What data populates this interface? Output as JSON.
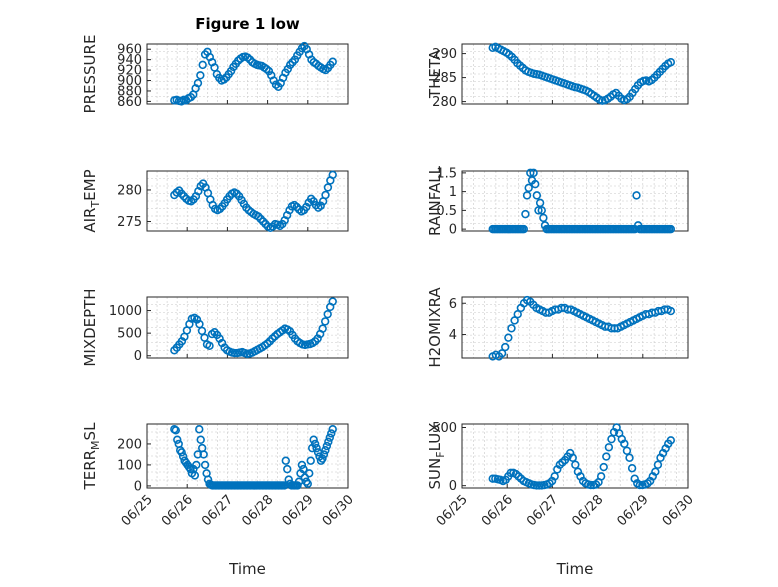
{
  "chart_data": [
    {
      "type": "scatter",
      "title": "Figure 1 low",
      "xlabel": "",
      "ylabel": "PRESSURE",
      "ylim": [
        855,
        970
      ],
      "yticks": [
        860,
        880,
        900,
        920,
        940,
        960
      ],
      "y": [
        862,
        863,
        861,
        860,
        863,
        862,
        866,
        868,
        873,
        885,
        895,
        910,
        930,
        950,
        955,
        945,
        935,
        925,
        912,
        905,
        900,
        902,
        906,
        912,
        918,
        926,
        932,
        938,
        942,
        945,
        946,
        944,
        940,
        935,
        932,
        930,
        929,
        928,
        925,
        922,
        918,
        910,
        900,
        892,
        888,
        895,
        905,
        915,
        922,
        930,
        935,
        940,
        948,
        955,
        962,
        966,
        960,
        950,
        940,
        935,
        932,
        928,
        925,
        922,
        920,
        924,
        930,
        936
      ]
    },
    {
      "type": "scatter",
      "title": "",
      "xlabel": "",
      "ylabel": "THETA",
      "ylim": [
        279.5,
        292
      ],
      "yticks": [
        280,
        285,
        290
      ],
      "y": [
        291.2,
        291.4,
        291.1,
        290.8,
        290.5,
        290.2,
        289.8,
        289.3,
        288.7,
        288.0,
        287.5,
        287.0,
        286.5,
        286.2,
        286.0,
        285.8,
        285.7,
        285.6,
        285.4,
        285.2,
        285.0,
        284.8,
        284.6,
        284.4,
        284.2,
        284.0,
        283.8,
        283.6,
        283.4,
        283.2,
        283.0,
        282.9,
        282.7,
        282.5,
        282.3,
        282.0,
        281.6,
        281.2,
        280.8,
        280.4,
        280.2,
        280.3,
        280.6,
        281.0,
        281.5,
        281.8,
        281.2,
        280.6,
        280.3,
        280.5,
        281.0,
        281.8,
        282.6,
        283.4,
        284.0,
        284.3,
        284.4,
        284.2,
        284.5,
        285.0,
        285.6,
        286.2,
        286.8,
        287.4,
        287.9,
        288.2
      ]
    },
    {
      "type": "scatter",
      "title": "",
      "xlabel": "",
      "ylabel": "AIR_TEMP",
      "ylim": [
        273.5,
        283
      ],
      "yticks": [
        275,
        280
      ],
      "y": [
        279.2,
        279.6,
        279.9,
        279.4,
        279.0,
        278.6,
        278.3,
        278.2,
        278.5,
        279.0,
        279.8,
        280.6,
        281.0,
        280.4,
        279.5,
        278.5,
        277.6,
        277.0,
        276.8,
        277.0,
        277.4,
        277.9,
        278.5,
        279.0,
        279.4,
        279.6,
        279.4,
        279.0,
        278.4,
        277.8,
        277.2,
        276.8,
        276.5,
        276.2,
        276.0,
        275.8,
        275.4,
        275.0,
        274.6,
        274.2,
        274.0,
        274.2,
        274.6,
        274.5,
        274.3,
        274.6,
        275.2,
        276.0,
        276.8,
        277.4,
        277.6,
        277.3,
        276.9,
        276.6,
        276.8,
        277.3,
        278.0,
        278.6,
        278.2,
        277.6,
        277.2,
        277.5,
        278.2,
        279.2,
        280.4,
        281.5,
        282.4
      ]
    },
    {
      "type": "scatter",
      "title": "",
      "xlabel": "",
      "ylabel": "RAINFALL",
      "ylim": [
        -0.05,
        1.55
      ],
      "yticks": [
        0,
        0.5,
        1,
        1.5
      ],
      "y": [
        0,
        0,
        0,
        0,
        0,
        0,
        0,
        0,
        0,
        0,
        0,
        0,
        0,
        0,
        0,
        0,
        0,
        0,
        0,
        0,
        0.4,
        0.9,
        1.1,
        1.5,
        1.3,
        1.5,
        1.2,
        0.9,
        0.5,
        0.7,
        0.5,
        0.3,
        0.1,
        0,
        0,
        0,
        0,
        0,
        0,
        0,
        0,
        0,
        0,
        0,
        0,
        0,
        0,
        0,
        0,
        0,
        0,
        0,
        0,
        0,
        0,
        0,
        0,
        0,
        0,
        0,
        0,
        0,
        0,
        0,
        0,
        0,
        0,
        0,
        0,
        0,
        0,
        0,
        0,
        0,
        0,
        0,
        0,
        0,
        0,
        0,
        0,
        0,
        0,
        0,
        0,
        0,
        0,
        0,
        0.9,
        0.1,
        0,
        0,
        0,
        0,
        0,
        0,
        0,
        0,
        0,
        0,
        0,
        0,
        0,
        0,
        0,
        0,
        0,
        0,
        0,
        0
      ]
    },
    {
      "type": "scatter",
      "title": "",
      "xlabel": "",
      "ylabel": "MIXDEPTH",
      "ylim": [
        -50,
        1300
      ],
      "yticks": [
        0,
        500,
        1000
      ],
      "y": [
        120,
        180,
        250,
        320,
        420,
        560,
        700,
        820,
        840,
        800,
        700,
        550,
        400,
        250,
        220,
        480,
        520,
        460,
        380,
        280,
        180,
        120,
        90,
        70,
        60,
        60,
        70,
        80,
        60,
        40,
        50,
        70,
        100,
        130,
        160,
        190,
        230,
        270,
        320,
        380,
        430,
        480,
        520,
        560,
        600,
        580,
        540,
        460,
        380,
        320,
        280,
        250,
        240,
        250,
        260,
        280,
        320,
        380,
        480,
        600,
        760,
        920,
        1080,
        1200
      ]
    },
    {
      "type": "scatter",
      "title": "",
      "xlabel": "",
      "ylabel": "H2OMIXRA",
      "ylim": [
        2.5,
        6.4
      ],
      "yticks": [
        4,
        6
      ],
      "y": [
        2.6,
        2.7,
        2.6,
        2.8,
        3.2,
        3.8,
        4.4,
        4.9,
        5.3,
        5.7,
        6.0,
        6.2,
        6.1,
        5.9,
        5.7,
        5.6,
        5.5,
        5.4,
        5.4,
        5.5,
        5.6,
        5.6,
        5.7,
        5.7,
        5.6,
        5.6,
        5.5,
        5.4,
        5.3,
        5.2,
        5.1,
        5.0,
        4.9,
        4.8,
        4.7,
        4.6,
        4.5,
        4.5,
        4.4,
        4.4,
        4.4,
        4.5,
        4.6,
        4.7,
        4.8,
        4.9,
        5.0,
        5.1,
        5.2,
        5.3,
        5.3,
        5.4,
        5.4,
        5.5,
        5.5,
        5.6,
        5.6,
        5.5
      ]
    },
    {
      "type": "scatter",
      "title": "",
      "xlabel": "Time",
      "ylabel": "TERR_MSL",
      "ylim": [
        -10,
        295
      ],
      "yticks": [
        0,
        100,
        200
      ],
      "xticklabels": [
        "06/25",
        "06/26",
        "06/27",
        "06/28",
        "06/29",
        "06/30"
      ],
      "y": [
        270,
        265,
        220,
        200,
        170,
        160,
        140,
        120,
        110,
        100,
        90,
        80,
        60,
        80,
        50,
        100,
        150,
        270,
        220,
        180,
        150,
        100,
        60,
        30,
        10,
        5,
        2,
        2,
        2,
        2,
        2,
        2,
        2,
        2,
        2,
        2,
        2,
        2,
        2,
        2,
        2,
        2,
        2,
        2,
        2,
        2,
        2,
        2,
        2,
        2,
        2,
        2,
        2,
        2,
        2,
        2,
        2,
        2,
        2,
        2,
        2,
        2,
        2,
        2,
        2,
        2,
        2,
        2,
        2,
        2,
        2,
        2,
        2,
        2,
        2,
        2,
        120,
        80,
        30,
        10,
        2,
        2,
        2,
        2,
        2,
        20,
        60,
        100,
        80,
        40,
        20,
        10,
        60,
        120,
        180,
        220,
        200,
        180,
        160,
        140,
        120,
        130,
        150,
        170,
        190,
        210,
        230,
        250,
        270
      ]
    },
    {
      "type": "scatter",
      "title": "",
      "xlabel": "Time",
      "ylabel": "SUN_FLUX",
      "ylim": [
        -20,
        530
      ],
      "yticks": [
        0,
        500
      ],
      "xticklabels": [
        "06/25",
        "06/26",
        "06/27",
        "06/28",
        "06/29",
        "06/30"
      ],
      "y": [
        60,
        60,
        55,
        50,
        40,
        50,
        80,
        110,
        110,
        100,
        80,
        60,
        40,
        30,
        20,
        10,
        5,
        2,
        2,
        2,
        5,
        10,
        20,
        40,
        80,
        140,
        180,
        200,
        220,
        250,
        280,
        240,
        180,
        120,
        80,
        40,
        20,
        10,
        5,
        5,
        10,
        30,
        80,
        160,
        250,
        330,
        400,
        460,
        500,
        450,
        400,
        360,
        300,
        240,
        150,
        60,
        20,
        5,
        5,
        10,
        20,
        40,
        80,
        120,
        180,
        240,
        280,
        320,
        360,
        390
      ]
    }
  ]
}
